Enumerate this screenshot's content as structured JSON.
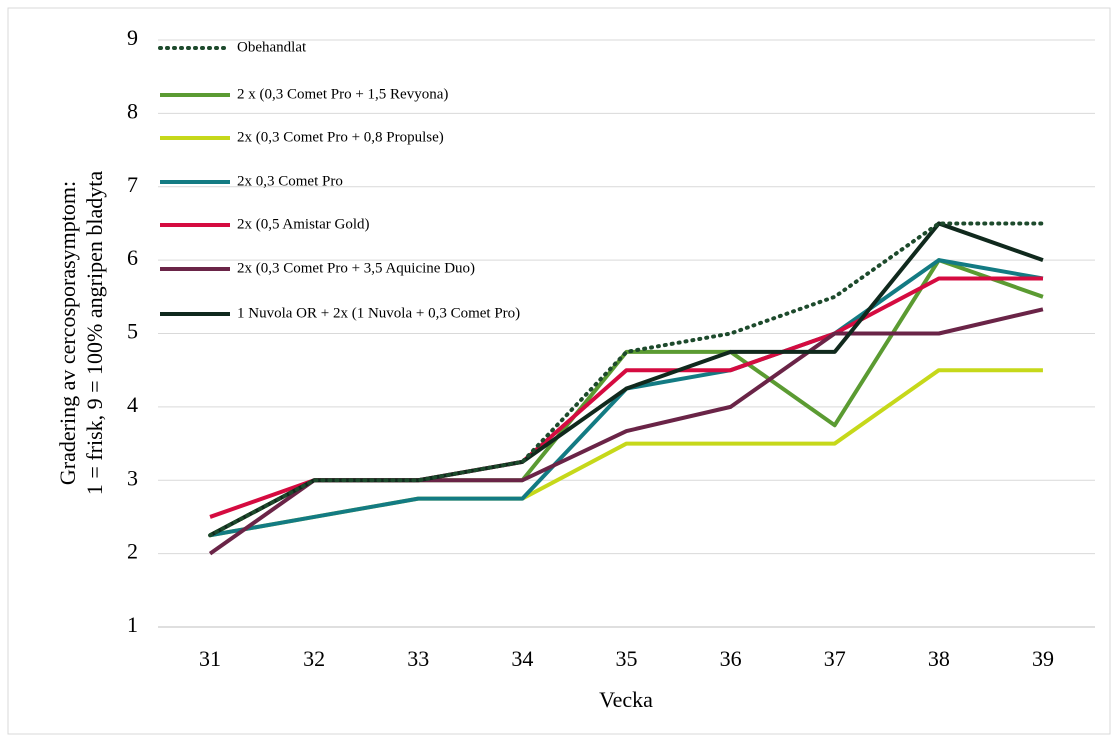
{
  "chart_data": {
    "type": "line",
    "x_label": "Vecka",
    "y_label": [
      "Gradering av cercosporasymptom:",
      "1 = frisk, 9 = 100% angripen bladyta"
    ],
    "x": [
      31,
      32,
      33,
      34,
      35,
      36,
      37,
      38,
      39
    ],
    "xlim": [
      30.5,
      39.5
    ],
    "xticks": [
      31,
      32,
      33,
      34,
      35,
      36,
      37,
      38,
      39
    ],
    "ylim": [
      1,
      9
    ],
    "yticks": [
      1,
      2,
      3,
      4,
      5,
      6,
      7,
      8,
      9
    ],
    "grid": true,
    "legend": "top-left",
    "series": [
      {
        "name": "Obehandlat",
        "color": "#1d4a2c",
        "dash": "dotted",
        "values": [
          2.25,
          3,
          3,
          3.25,
          4.75,
          5,
          5.5,
          6.5,
          6.5
        ]
      },
      {
        "name": "2 x (0,3 Comet Pro + 1,5 Revyona)",
        "color": "#5b9b32",
        "values": [
          2.25,
          3,
          3,
          3,
          4.75,
          4.75,
          3.75,
          6,
          5.5
        ]
      },
      {
        "name": "2x (0,3 Comet Pro + 0,8 Propulse)",
        "color": "#c6d81a",
        "values": [
          2.25,
          2.5,
          2.75,
          2.75,
          3.5,
          3.5,
          3.5,
          4.5,
          4.5
        ]
      },
      {
        "name": "2x 0,3 Comet Pro",
        "color": "#137b83",
        "values": [
          2.25,
          2.5,
          2.75,
          2.75,
          4.25,
          4.5,
          5,
          6,
          5.75
        ]
      },
      {
        "name": "2x (0,5 Amistar Gold)",
        "color": "#d50b40",
        "values": [
          2.5,
          3,
          3,
          3.25,
          4.5,
          4.5,
          5,
          5.75,
          5.75
        ]
      },
      {
        "name": "2x (0,3 Comet Pro + 3,5 Aquicine Duo)",
        "color": "#6a2447",
        "values": [
          2,
          3,
          3,
          3,
          3.67,
          4,
          5,
          5,
          5.33
        ]
      },
      {
        "name": "1 Nuvola OR + 2x (1 Nuvola + 0,3 Comet Pro)",
        "color": "#10291d",
        "values": [
          2.25,
          3,
          3,
          3.25,
          4.25,
          4.75,
          4.75,
          6.5,
          6
        ]
      }
    ]
  }
}
